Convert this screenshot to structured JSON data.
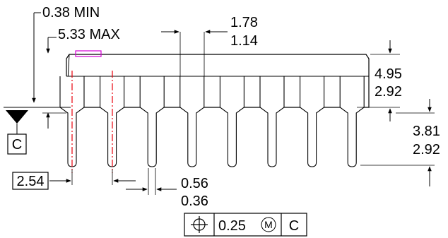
{
  "dimensions": {
    "standoff_min": "0.38 MIN",
    "height_max": "5.33 MAX",
    "lead_width_upper_max": "1.78",
    "lead_width_upper_min": "1.14",
    "body_height_max": "4.95",
    "body_height_min": "2.92",
    "lead_length_max": "3.81",
    "lead_length_min": "2.92",
    "pitch_basic": "2.54",
    "lead_width_max": "0.56",
    "lead_width_min": "0.36"
  },
  "datum": {
    "label": "C"
  },
  "feature_control_frame": {
    "symbol": "position-icon",
    "tolerance": "0.25",
    "modifier": "M",
    "datum": "C"
  },
  "colors": {
    "line": "#000000",
    "centerline": "#e8000b",
    "pin1_marker": "#d400d4"
  },
  "pin_count": 8
}
